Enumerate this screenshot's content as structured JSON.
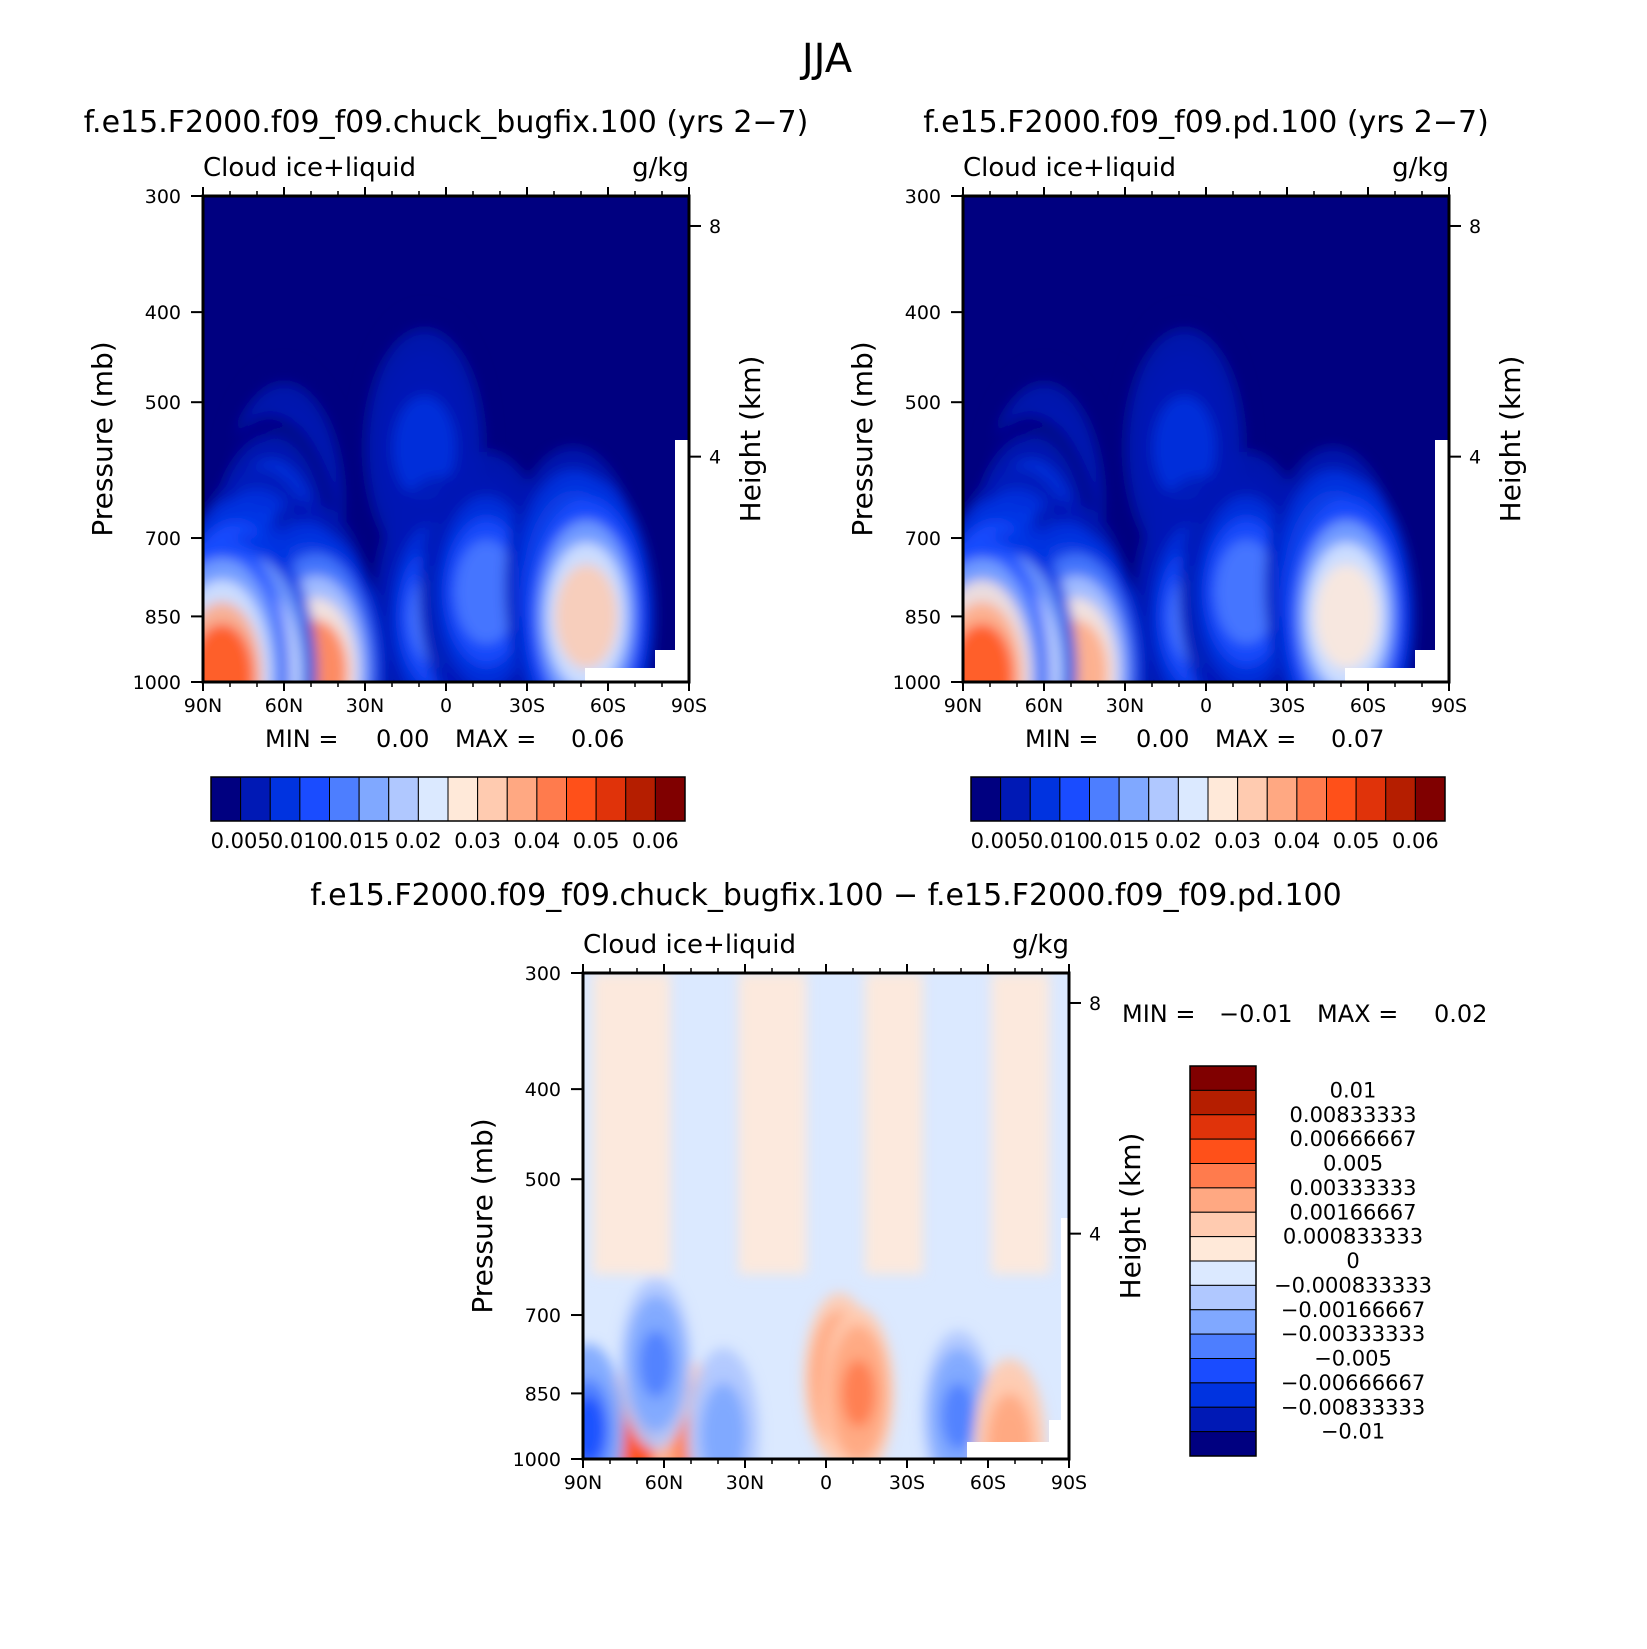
{
  "figure": {
    "suptitle": "JJA"
  },
  "colors": {
    "seq": [
      "#000080",
      "#0019b5",
      "#0033e0",
      "#1a4cff",
      "#4d7eff",
      "#80a8ff",
      "#b0c8ff",
      "#dbe9ff",
      "#ffe9d9",
      "#ffcbb0",
      "#ffa882",
      "#ff7b4d",
      "#ff5019",
      "#e0330a",
      "#b51e00",
      "#800000"
    ],
    "diff": [
      "#000080",
      "#0019b5",
      "#0033e0",
      "#1a4cff",
      "#4d7eff",
      "#80a8ff",
      "#b0c8ff",
      "#dbe9ff",
      "#ffe9d9",
      "#ffcbb0",
      "#ffa882",
      "#ff7b4d",
      "#ff5019",
      "#e0330a",
      "#b51e00",
      "#800000"
    ]
  },
  "chart_data": [
    {
      "type": "heatmap",
      "title": "f.e15.F2000.f09_f09.chuck_bugfix.100 (yrs 2−7)",
      "left_label": "Cloud ice+liquid",
      "right_label": "g/kg",
      "xlabel": "",
      "ylabel": "Pressure (mb)",
      "ylabel_right": "Height (km)",
      "x_ticks": [
        "90N",
        "60N",
        "30N",
        "0",
        "30S",
        "60S",
        "90S"
      ],
      "y_ticks": [
        "300",
        "400",
        "500",
        "700",
        "850",
        "1000"
      ],
      "y_ticks_right": [
        "8",
        "4"
      ],
      "xlim": [
        90,
        -90
      ],
      "ylim": [
        1000,
        300
      ],
      "min_label": "MIN =",
      "min_value": "0.00",
      "max_label": "MAX =",
      "max_value": "0.06",
      "colorbar_labels": [
        "0.005",
        "0.010",
        "0.015",
        "0.02",
        "0.03",
        "0.04",
        "0.05",
        "0.06"
      ],
      "colorbar_levels": [
        0.005,
        0.01,
        0.015,
        0.02,
        0.025,
        0.03,
        0.035,
        0.04,
        0.045,
        0.05,
        0.055,
        0.06
      ],
      "field": [
        {
          "lat": 83,
          "p": 985,
          "v": 0.062
        },
        {
          "lat": 73,
          "p": 980,
          "v": 0.058
        },
        {
          "lat": 78,
          "p": 900,
          "v": 0.04
        },
        {
          "lat": 70,
          "p": 830,
          "v": 0.026
        },
        {
          "lat": 65,
          "p": 730,
          "v": 0.018
        },
        {
          "lat": 60,
          "p": 640,
          "v": 0.014
        },
        {
          "lat": 48,
          "p": 975,
          "v": 0.055
        },
        {
          "lat": 52,
          "p": 900,
          "v": 0.032
        },
        {
          "lat": -52,
          "p": 850,
          "v": 0.045
        },
        {
          "lat": -47,
          "p": 790,
          "v": 0.032
        },
        {
          "lat": -15,
          "p": 800,
          "v": 0.022
        },
        {
          "lat": 2,
          "p": 850,
          "v": 0.02
        },
        {
          "lat": 8,
          "p": 560,
          "v": 0.012
        }
      ]
    },
    {
      "type": "heatmap",
      "title": "f.e15.F2000.f09_f09.pd.100 (yrs 2−7)",
      "left_label": "Cloud ice+liquid",
      "right_label": "g/kg",
      "xlabel": "",
      "ylabel": "Pressure (mb)",
      "ylabel_right": "Height (km)",
      "x_ticks": [
        "90N",
        "60N",
        "30N",
        "0",
        "30S",
        "60S",
        "90S"
      ],
      "y_ticks": [
        "300",
        "400",
        "500",
        "700",
        "850",
        "1000"
      ],
      "y_ticks_right": [
        "8",
        "4"
      ],
      "xlim": [
        90,
        -90
      ],
      "ylim": [
        1000,
        300
      ],
      "min_label": "MIN =",
      "min_value": "0.00",
      "max_label": "MAX =",
      "max_value": "0.07",
      "colorbar_labels": [
        "0.005",
        "0.010",
        "0.015",
        "0.02",
        "0.03",
        "0.04",
        "0.05",
        "0.06"
      ],
      "colorbar_levels": [
        0.005,
        0.01,
        0.015,
        0.02,
        0.025,
        0.03,
        0.035,
        0.04,
        0.045,
        0.05,
        0.055,
        0.06
      ],
      "field": [
        {
          "lat": 83,
          "p": 985,
          "v": 0.066
        },
        {
          "lat": 73,
          "p": 975,
          "v": 0.058
        },
        {
          "lat": 78,
          "p": 900,
          "v": 0.042
        },
        {
          "lat": 70,
          "p": 830,
          "v": 0.028
        },
        {
          "lat": 65,
          "p": 730,
          "v": 0.018
        },
        {
          "lat": 60,
          "p": 640,
          "v": 0.014
        },
        {
          "lat": 48,
          "p": 975,
          "v": 0.052
        },
        {
          "lat": 52,
          "p": 900,
          "v": 0.034
        },
        {
          "lat": -52,
          "p": 850,
          "v": 0.044
        },
        {
          "lat": -47,
          "p": 790,
          "v": 0.032
        },
        {
          "lat": -15,
          "p": 800,
          "v": 0.022
        },
        {
          "lat": 2,
          "p": 850,
          "v": 0.02
        },
        {
          "lat": 8,
          "p": 560,
          "v": 0.012
        }
      ]
    },
    {
      "type": "heatmap",
      "title": "f.e15.F2000.f09_f09.chuck_bugfix.100 − f.e15.F2000.f09_f09.pd.100",
      "left_label": "Cloud ice+liquid",
      "right_label": "g/kg",
      "xlabel": "",
      "ylabel": "Pressure (mb)",
      "ylabel_right": "Height (km)",
      "x_ticks": [
        "90N",
        "60N",
        "30N",
        "0",
        "30S",
        "60S",
        "90S"
      ],
      "y_ticks": [
        "300",
        "400",
        "500",
        "700",
        "850",
        "1000"
      ],
      "y_ticks_right": [
        "8",
        "4"
      ],
      "xlim": [
        90,
        -90
      ],
      "ylim": [
        1000,
        300
      ],
      "min_label": "MIN =",
      "min_value": "−0.01",
      "max_label": "MAX =",
      "max_value": "0.02",
      "colorbar_labels": [
        "0.01",
        "0.00833333",
        "0.00666667",
        "0.005",
        "0.00333333",
        "0.00166667",
        "0.000833333",
        "0",
        "−0.000833333",
        "−0.00166667",
        "−0.00333333",
        "−0.005",
        "−0.00666667",
        "−0.00833333",
        "−0.01"
      ],
      "field": [
        {
          "lat": 60,
          "p": 990,
          "v": 0.012
        },
        {
          "lat": 70,
          "p": 975,
          "v": 0.005
        },
        {
          "lat": 50,
          "p": 975,
          "v": 0.004
        },
        {
          "lat": 88,
          "p": 930,
          "v": -0.006
        },
        {
          "lat": 63,
          "p": 790,
          "v": -0.004
        },
        {
          "lat": 38,
          "p": 940,
          "v": -0.003
        },
        {
          "lat": -5,
          "p": 820,
          "v": 0.004
        },
        {
          "lat": -12,
          "p": 850,
          "v": 0.0035
        },
        {
          "lat": -49,
          "p": 900,
          "v": -0.004
        },
        {
          "lat": -68,
          "p": 965,
          "v": 0.003
        }
      ]
    }
  ]
}
